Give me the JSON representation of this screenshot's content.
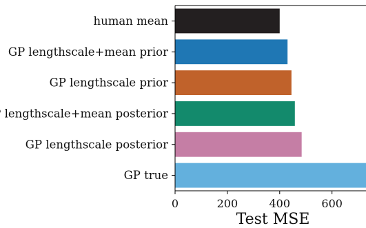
{
  "chart_data": {
    "type": "bar",
    "orientation": "horizontal",
    "categories": [
      "human mean",
      "GP lengthscale+mean prior",
      "GP lengthscale prior",
      "GP lengthscale+mean posterior",
      "GP lengthscale posterior",
      "GP true"
    ],
    "values": [
      400,
      430,
      445,
      458,
      484,
      730
    ],
    "colors": [
      "#231f20",
      "#1f77b4",
      "#c0622b",
      "#138a6c",
      "#c57ea5",
      "#63b0dd"
    ],
    "xlabel": "Test MSE",
    "ylabel": "",
    "xlim": [
      0,
      730
    ],
    "xticks": [
      0,
      200,
      400,
      600
    ],
    "grid": false,
    "legend": "none"
  }
}
